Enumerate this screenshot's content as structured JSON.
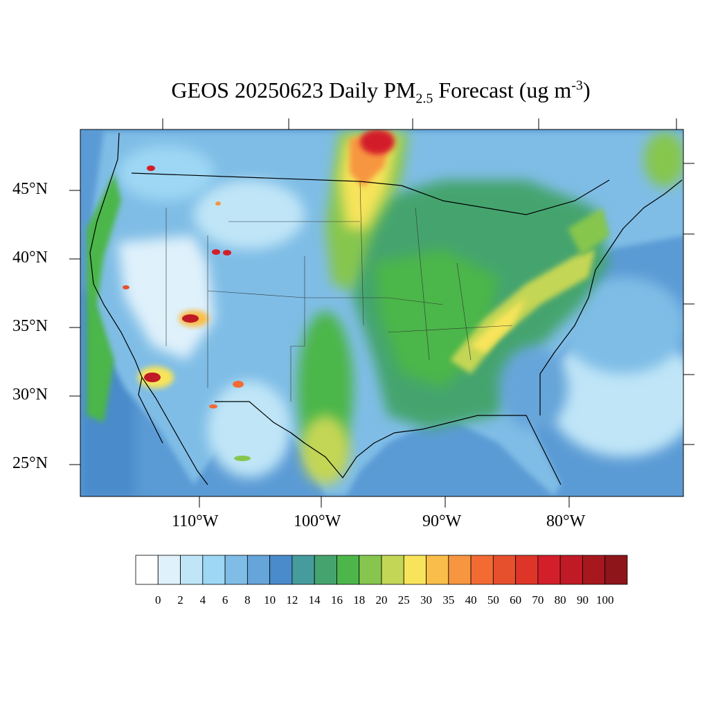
{
  "title": {
    "prefix": "GEOS 20250623 Daily PM",
    "subscript": "2.5",
    "middle": " Forecast (ug m",
    "superscript": "-3",
    "suffix": ")"
  },
  "lat_labels": [
    "45°N",
    "40°N",
    "35°N",
    "30°N",
    "25°N"
  ],
  "lon_labels": [
    "110°W",
    "100°W",
    "90°W",
    "80°W"
  ],
  "colorbar": {
    "labels": [
      "0",
      "2",
      "4",
      "6",
      "8",
      "10",
      "12",
      "14",
      "16",
      "18",
      "20",
      "25",
      "30",
      "35",
      "40",
      "50",
      "60",
      "70",
      "80",
      "90",
      "100"
    ],
    "colors": [
      "#ffffff",
      "#dff1fb",
      "#bfe5f7",
      "#9dd7f4",
      "#7fbde6",
      "#66a5d9",
      "#4a8bcb",
      "#469c9c",
      "#45a46e",
      "#4cb64a",
      "#86c64e",
      "#c4d655",
      "#f7e45a",
      "#f9bd4a",
      "#f79640",
      "#f26b32",
      "#e7502c",
      "#dd3528",
      "#d31f2a",
      "#bf1a25",
      "#a7181e",
      "#8e1519"
    ]
  },
  "map": {
    "region": "CONUS",
    "colors": {
      "ocean": "#6aa8db",
      "land_default": "#5aa5d8",
      "coast_line": "#000000",
      "state_line": "#333333"
    }
  }
}
